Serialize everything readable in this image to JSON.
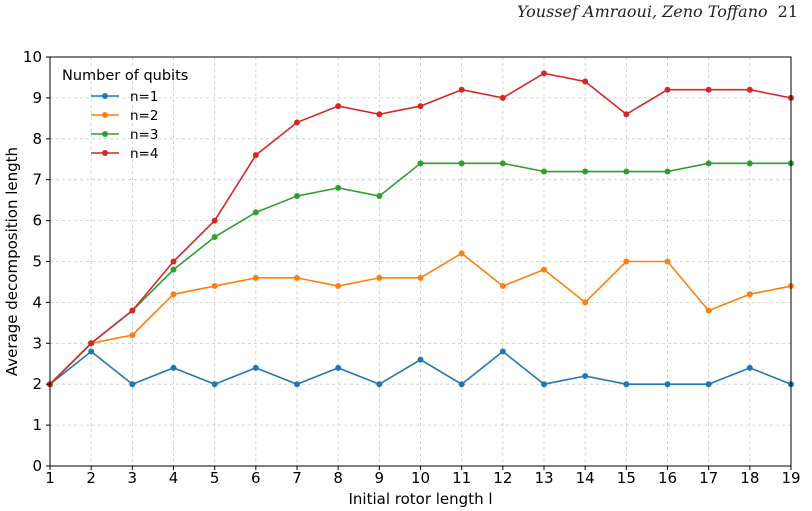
{
  "header": {
    "authors": "Youssef Amraoui, Zeno Toffano",
    "page_number": "21"
  },
  "chart_data": {
    "type": "line",
    "title": "",
    "xlabel": "Initial rotor length l",
    "ylabel": "Average decomposition length",
    "x": [
      1,
      2,
      3,
      4,
      5,
      6,
      7,
      8,
      9,
      10,
      11,
      12,
      13,
      14,
      15,
      16,
      17,
      18,
      19
    ],
    "xlim": [
      1,
      19
    ],
    "ylim": [
      0,
      10
    ],
    "xticks": [
      1,
      2,
      3,
      4,
      5,
      6,
      7,
      8,
      9,
      10,
      11,
      12,
      13,
      14,
      15,
      16,
      17,
      18,
      19
    ],
    "yticks": [
      0,
      1,
      2,
      3,
      4,
      5,
      6,
      7,
      8,
      9,
      10
    ],
    "grid": true,
    "legend_title": "Number of qubits",
    "legend_position": "top-left",
    "series": [
      {
        "name": "n=1",
        "color": "#1f77b4",
        "values": [
          2,
          2.8,
          2,
          2.4,
          2,
          2.4,
          2,
          2.4,
          2,
          2.6,
          2,
          2.8,
          2,
          2.2,
          2,
          2,
          2,
          2.4,
          2
        ]
      },
      {
        "name": "n=2",
        "color": "#ff7f0e",
        "values": [
          2,
          3,
          3.2,
          4.2,
          4.4,
          4.6,
          4.6,
          4.4,
          4.6,
          4.6,
          5.2,
          4.4,
          4.8,
          4.0,
          5.0,
          5.0,
          3.8,
          4.2,
          4.4
        ]
      },
      {
        "name": "n=3",
        "color": "#2ca02c",
        "values": [
          2,
          3,
          3.8,
          4.8,
          5.6,
          6.2,
          6.6,
          6.8,
          6.6,
          7.4,
          7.4,
          7.4,
          7.2,
          7.2,
          7.2,
          7.2,
          7.4,
          7.4,
          7.4
        ]
      },
      {
        "name": "n=4",
        "color": "#d62728",
        "values": [
          2,
          3,
          3.8,
          5.0,
          6.0,
          7.6,
          8.4,
          8.8,
          8.6,
          8.8,
          9.2,
          9.0,
          9.6,
          9.4,
          8.6,
          9.2,
          9.2,
          9.2,
          9.0
        ]
      }
    ]
  }
}
